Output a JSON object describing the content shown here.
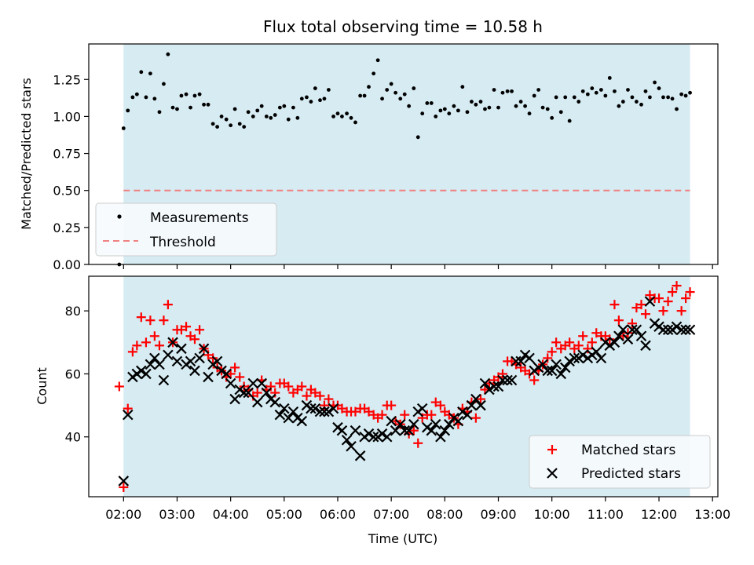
{
  "chart_data": [
    {
      "type": "scatter",
      "title": "Flux total observing time = 10.58 h",
      "xlabel": "",
      "ylabel": "Matched/Predicted stars",
      "xlim": [
        1.35,
        13.1
      ],
      "ylim": [
        0.0,
        1.49
      ],
      "yticks": [
        0.0,
        0.25,
        0.5,
        0.75,
        1.0,
        1.25
      ],
      "ytick_labels": [
        "0.00",
        "0.25",
        "0.50",
        "0.75",
        "1.00",
        "1.25"
      ],
      "observing_window": [
        2.0,
        12.58
      ],
      "threshold": {
        "name": "Threshold",
        "value": 0.5,
        "color": "#f08080"
      },
      "series": [
        {
          "name": "Measurements",
          "color": "#000000",
          "marker": "dot",
          "x": [
            1.92,
            2.0,
            2.08,
            2.17,
            2.25,
            2.33,
            2.42,
            2.5,
            2.58,
            2.67,
            2.75,
            2.83,
            2.92,
            3.0,
            3.08,
            3.17,
            3.25,
            3.33,
            3.42,
            3.5,
            3.58,
            3.67,
            3.75,
            3.83,
            3.92,
            4.0,
            4.08,
            4.17,
            4.25,
            4.33,
            4.42,
            4.5,
            4.58,
            4.67,
            4.75,
            4.83,
            4.92,
            5.0,
            5.08,
            5.17,
            5.25,
            5.33,
            5.42,
            5.5,
            5.58,
            5.67,
            5.75,
            5.83,
            5.92,
            6.0,
            6.08,
            6.17,
            6.25,
            6.33,
            6.42,
            6.5,
            6.58,
            6.67,
            6.75,
            6.83,
            6.92,
            7.0,
            7.08,
            7.17,
            7.25,
            7.33,
            7.42,
            7.5,
            7.58,
            7.67,
            7.75,
            7.83,
            7.92,
            8.0,
            8.08,
            8.17,
            8.25,
            8.33,
            8.42,
            8.5,
            8.58,
            8.67,
            8.75,
            8.83,
            8.92,
            9.0,
            9.08,
            9.17,
            9.25,
            9.33,
            9.42,
            9.5,
            9.58,
            9.67,
            9.75,
            9.83,
            9.92,
            10.0,
            10.08,
            10.17,
            10.25,
            10.33,
            10.42,
            10.5,
            10.58,
            10.67,
            10.75,
            10.83,
            10.92,
            11.0,
            11.08,
            11.17,
            11.25,
            11.33,
            11.42,
            11.5,
            11.58,
            11.67,
            11.75,
            11.83,
            11.92,
            12.0,
            12.08,
            12.17,
            12.25,
            12.33,
            12.42,
            12.5,
            12.58
          ],
          "y": [
            0.0,
            0.92,
            1.04,
            1.13,
            1.15,
            1.3,
            1.13,
            1.29,
            1.12,
            1.03,
            1.22,
            1.42,
            1.06,
            1.05,
            1.14,
            1.15,
            1.06,
            1.14,
            1.15,
            1.08,
            1.08,
            0.95,
            0.93,
            1.0,
            0.98,
            0.94,
            1.05,
            0.95,
            0.93,
            1.03,
            1.0,
            1.04,
            1.07,
            1.0,
            0.99,
            1.01,
            1.06,
            1.07,
            0.98,
            1.06,
            0.99,
            1.12,
            1.13,
            1.1,
            1.19,
            1.11,
            1.12,
            1.18,
            1.0,
            1.02,
            1.0,
            1.02,
            0.99,
            0.96,
            1.14,
            1.14,
            1.2,
            1.29,
            1.38,
            1.12,
            1.18,
            1.22,
            1.16,
            1.12,
            1.15,
            1.07,
            1.19,
            0.86,
            1.02,
            1.09,
            1.09,
            1.0,
            1.04,
            1.05,
            1.02,
            1.07,
            1.04,
            1.2,
            1.03,
            1.1,
            1.08,
            1.1,
            1.05,
            1.06,
            1.18,
            1.06,
            1.16,
            1.17,
            1.17,
            1.07,
            1.1,
            1.07,
            1.02,
            1.14,
            1.18,
            1.06,
            1.05,
            0.99,
            1.13,
            1.03,
            1.13,
            0.97,
            1.13,
            1.1,
            1.17,
            1.15,
            1.19,
            1.16,
            1.18,
            1.14,
            1.26,
            1.17,
            1.07,
            1.1,
            1.18,
            1.13,
            1.1,
            1.08,
            1.17,
            1.13,
            1.23,
            1.19,
            1.13,
            1.13,
            1.12,
            1.05,
            1.15,
            1.14,
            1.16
          ]
        }
      ],
      "legend": {
        "location": "lower-left",
        "entries": [
          "Measurements",
          "Threshold"
        ]
      }
    },
    {
      "type": "scatter",
      "title": "",
      "xlabel": "Time (UTC)",
      "ylabel": "Count",
      "xlim": [
        1.35,
        13.1
      ],
      "ylim": [
        21,
        91
      ],
      "yticks": [
        40,
        60,
        80
      ],
      "ytick_labels": [
        "40",
        "60",
        "80"
      ],
      "xticks": [
        2,
        3,
        4,
        5,
        6,
        7,
        8,
        9,
        10,
        11,
        12,
        13
      ],
      "xtick_labels": [
        "02:00",
        "03:00",
        "04:00",
        "05:00",
        "06:00",
        "07:00",
        "08:00",
        "09:00",
        "10:00",
        "11:00",
        "12:00",
        "13:00"
      ],
      "observing_window": [
        2.0,
        12.58
      ],
      "series": [
        {
          "name": "Matched stars",
          "color": "#ff0000",
          "marker": "plus",
          "x": [
            1.92,
            2.0,
            2.08,
            2.17,
            2.25,
            2.33,
            2.42,
            2.5,
            2.58,
            2.67,
            2.75,
            2.83,
            2.92,
            3.0,
            3.08,
            3.17,
            3.25,
            3.33,
            3.42,
            3.5,
            3.58,
            3.67,
            3.75,
            3.83,
            3.92,
            4.0,
            4.08,
            4.17,
            4.25,
            4.33,
            4.42,
            4.5,
            4.58,
            4.67,
            4.75,
            4.83,
            4.92,
            5.0,
            5.08,
            5.17,
            5.25,
            5.33,
            5.42,
            5.5,
            5.58,
            5.67,
            5.75,
            5.83,
            5.92,
            6.0,
            6.08,
            6.17,
            6.25,
            6.33,
            6.42,
            6.5,
            6.58,
            6.67,
            6.75,
            6.83,
            6.92,
            7.0,
            7.08,
            7.17,
            7.25,
            7.33,
            7.42,
            7.5,
            7.58,
            7.67,
            7.75,
            7.83,
            7.92,
            8.0,
            8.08,
            8.17,
            8.25,
            8.33,
            8.42,
            8.5,
            8.58,
            8.67,
            8.75,
            8.83,
            8.92,
            9.0,
            9.08,
            9.17,
            9.25,
            9.33,
            9.42,
            9.5,
            9.58,
            9.67,
            9.75,
            9.83,
            9.92,
            10.0,
            10.08,
            10.17,
            10.25,
            10.33,
            10.42,
            10.5,
            10.58,
            10.67,
            10.75,
            10.83,
            10.92,
            11.0,
            11.08,
            11.17,
            11.25,
            11.33,
            11.42,
            11.5,
            11.58,
            11.67,
            11.75,
            11.83,
            11.92,
            12.0,
            12.08,
            12.17,
            12.25,
            12.33,
            12.42,
            12.5,
            12.58
          ],
          "y": [
            56,
            24,
            49,
            67,
            69,
            78,
            70,
            77,
            72,
            69,
            77,
            82,
            70,
            74,
            74,
            75,
            72,
            71,
            74,
            68,
            66,
            65,
            62,
            61,
            59,
            60,
            62,
            59,
            56,
            55,
            53,
            54,
            58,
            55,
            56,
            54,
            57,
            57,
            56,
            54,
            55,
            56,
            53,
            55,
            54,
            53,
            50,
            52,
            50,
            50,
            49,
            48,
            48,
            48,
            49,
            49,
            48,
            47,
            46,
            47,
            50,
            50,
            45,
            44,
            47,
            41,
            42,
            38,
            46,
            47,
            47,
            51,
            50,
            48,
            47,
            46,
            44,
            49,
            48,
            51,
            46,
            52,
            55,
            57,
            58,
            59,
            60,
            64,
            64,
            63,
            62,
            61,
            60,
            58,
            61,
            63,
            65,
            67,
            70,
            68,
            69,
            70,
            68,
            69,
            72,
            68,
            70,
            73,
            72,
            72,
            71,
            82,
            77,
            72,
            73,
            76,
            81,
            82,
            79,
            85,
            84,
            84,
            80,
            83,
            86,
            88,
            80,
            84,
            86
          ]
        },
        {
          "name": "Predicted stars",
          "color": "#000000",
          "marker": "x",
          "x": [
            1.92,
            2.0,
            2.08,
            2.17,
            2.25,
            2.33,
            2.42,
            2.5,
            2.58,
            2.67,
            2.75,
            2.83,
            2.92,
            3.0,
            3.08,
            3.17,
            3.25,
            3.33,
            3.42,
            3.5,
            3.58,
            3.67,
            3.75,
            3.83,
            3.92,
            4.0,
            4.08,
            4.17,
            4.25,
            4.33,
            4.42,
            4.5,
            4.58,
            4.67,
            4.75,
            4.83,
            4.92,
            5.0,
            5.08,
            5.17,
            5.25,
            5.33,
            5.42,
            5.5,
            5.58,
            5.67,
            5.75,
            5.83,
            5.92,
            6.0,
            6.08,
            6.17,
            6.25,
            6.33,
            6.42,
            6.5,
            6.58,
            6.67,
            6.75,
            6.83,
            6.92,
            7.0,
            7.08,
            7.17,
            7.25,
            7.33,
            7.42,
            7.5,
            7.58,
            7.67,
            7.75,
            7.83,
            7.92,
            8.0,
            8.08,
            8.17,
            8.25,
            8.33,
            8.42,
            8.5,
            8.58,
            8.67,
            8.75,
            8.83,
            8.92,
            9.0,
            9.08,
            9.17,
            9.25,
            9.33,
            9.42,
            9.5,
            9.58,
            9.67,
            9.75,
            9.83,
            9.92,
            10.0,
            10.08,
            10.17,
            10.25,
            10.33,
            10.42,
            10.5,
            10.58,
            10.67,
            10.75,
            10.83,
            10.92,
            11.0,
            11.08,
            11.17,
            11.25,
            11.33,
            11.42,
            11.5,
            11.58,
            11.67,
            11.75,
            11.83,
            11.92,
            12.0,
            12.08,
            12.17,
            12.25,
            12.33,
            12.42,
            12.5,
            12.58
          ],
          "y": [
            null,
            26,
            47,
            59,
            60,
            61,
            60,
            63,
            65,
            63,
            58,
            66,
            70,
            64,
            68,
            63,
            64,
            61,
            65,
            68,
            59,
            63,
            64,
            61,
            60,
            57,
            52,
            55,
            54,
            54,
            57,
            51,
            57,
            54,
            52,
            51,
            47,
            49,
            46,
            48,
            46,
            45,
            50,
            49,
            49,
            48,
            48,
            48,
            49,
            43,
            42,
            39,
            37,
            42,
            34,
            40,
            41,
            40,
            40,
            41,
            40,
            45,
            42,
            44,
            42,
            42,
            44,
            48,
            49,
            43,
            42,
            44,
            40,
            42,
            44,
            46,
            45,
            48,
            47,
            50,
            52,
            50,
            57,
            55,
            56,
            56,
            58,
            58,
            58,
            64,
            64,
            66,
            65,
            61,
            62,
            63,
            61,
            61,
            63,
            60,
            62,
            64,
            65,
            65,
            66,
            65,
            66,
            67,
            65,
            70,
            69,
            70,
            72,
            74,
            71,
            74,
            74,
            72,
            69,
            83,
            76,
            75,
            74,
            74,
            74,
            75,
            74,
            74,
            74
          ]
        }
      ],
      "legend": {
        "location": "lower-right",
        "entries": [
          "Matched stars",
          "Predicted stars"
        ]
      }
    }
  ]
}
